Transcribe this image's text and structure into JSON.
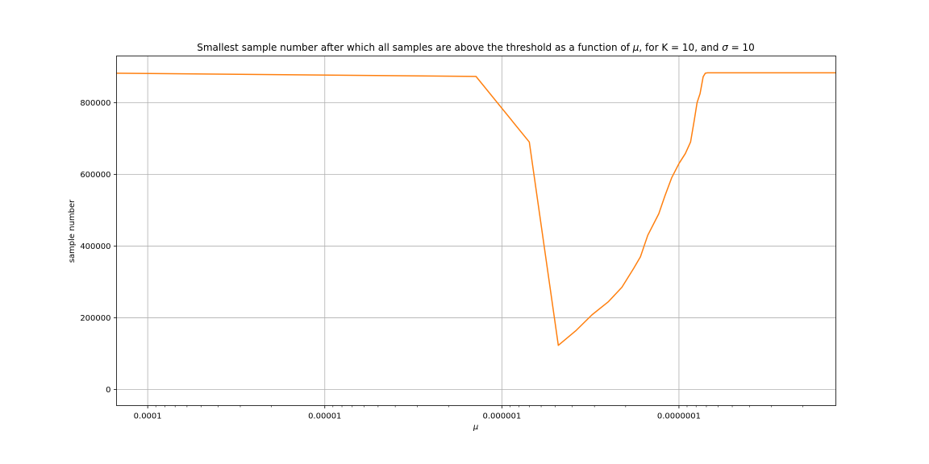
{
  "chart_data": {
    "type": "line",
    "title_parts": [
      {
        "text": "Smallest sample number after which all samples are above the threshold as a function of ",
        "italic": false
      },
      {
        "text": "μ",
        "italic": true
      },
      {
        "text": ", for K = 10, and ",
        "italic": false
      },
      {
        "text": "σ",
        "italic": true
      },
      {
        "text": " = 10",
        "italic": false
      }
    ],
    "xlabel": "μ",
    "ylabel": "sample number",
    "x_scale": "log",
    "x_inverted": true,
    "xlim": [
      0.00015,
      1.3e-08
    ],
    "ylim": [
      -45000,
      930000
    ],
    "x_ticks": [
      {
        "value": 0.0001,
        "label": "0.0001"
      },
      {
        "value": 1e-05,
        "label": "0.00001"
      },
      {
        "value": 1e-06,
        "label": "0.000001"
      },
      {
        "value": 1e-07,
        "label": "0.0000001"
      }
    ],
    "y_ticks": [
      {
        "value": 0,
        "label": "0"
      },
      {
        "value": 200000,
        "label": "200000"
      },
      {
        "value": 400000,
        "label": "400000"
      },
      {
        "value": 600000,
        "label": "600000"
      },
      {
        "value": 800000,
        "label": "800000"
      }
    ],
    "grid": true,
    "series": [
      {
        "color": "#ff7f0e",
        "x": [
          0.00015,
          1.4e-06,
          7e-07,
          4.8e-07,
          3.8e-07,
          3.1e-07,
          2.5e-07,
          2.1e-07,
          1.8e-07,
          1.65e-07,
          1.5e-07,
          1.3e-07,
          1.2e-07,
          1.1e-07,
          1e-07,
          9.2e-08,
          8.6e-08,
          8.2e-08,
          7.9e-08,
          7.6e-08,
          7.3e-08,
          7.1e-08,
          6.9e-08,
          6.5e-08,
          5e-08,
          3e-08,
          1.3e-08
        ],
        "y": [
          882000,
          873000,
          690000,
          123000,
          165000,
          208000,
          245000,
          285000,
          338000,
          370000,
          430000,
          490000,
          540000,
          590000,
          630000,
          658000,
          690000,
          750000,
          800000,
          825000,
          872000,
          882000,
          883000,
          883000,
          883000,
          883000,
          883000
        ]
      }
    ]
  }
}
